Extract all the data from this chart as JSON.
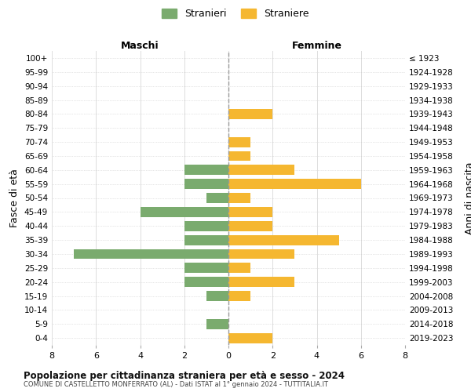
{
  "age_groups": [
    "100+",
    "95-99",
    "90-94",
    "85-89",
    "80-84",
    "75-79",
    "70-74",
    "65-69",
    "60-64",
    "55-59",
    "50-54",
    "45-49",
    "40-44",
    "35-39",
    "30-34",
    "25-29",
    "20-24",
    "15-19",
    "10-14",
    "5-9",
    "0-4"
  ],
  "birth_years": [
    "≤ 1923",
    "1924-1928",
    "1929-1933",
    "1934-1938",
    "1939-1943",
    "1944-1948",
    "1949-1953",
    "1954-1958",
    "1959-1963",
    "1964-1968",
    "1969-1973",
    "1974-1978",
    "1979-1983",
    "1984-1988",
    "1989-1993",
    "1994-1998",
    "1999-2003",
    "2004-2008",
    "2009-2013",
    "2014-2018",
    "2019-2023"
  ],
  "maschi": [
    0,
    0,
    0,
    0,
    0,
    0,
    0,
    0,
    2,
    2,
    1,
    4,
    2,
    2,
    7,
    2,
    2,
    1,
    0,
    1,
    0
  ],
  "femmine": [
    0,
    0,
    0,
    0,
    2,
    0,
    1,
    1,
    3,
    6,
    1,
    2,
    2,
    5,
    3,
    1,
    3,
    1,
    0,
    0,
    2
  ],
  "color_maschi": "#7aab6e",
  "color_femmine": "#f5b730",
  "title": "Popolazione per cittadinanza straniera per età e sesso - 2024",
  "subtitle": "COMUNE DI CASTELLETTO MONFERRATO (AL) - Dati ISTAT al 1° gennaio 2024 - TUTTITALIA.IT",
  "ylabel_left": "Fasce di età",
  "ylabel_right": "Anni di nascita",
  "header_left": "Maschi",
  "header_right": "Femmine",
  "legend_maschi": "Stranieri",
  "legend_femmine": "Straniere",
  "xlim": 8,
  "background_color": "#ffffff",
  "grid_color": "#dddddd",
  "grid_color_y": "#cccccc",
  "dashed_line_color": "#999999"
}
